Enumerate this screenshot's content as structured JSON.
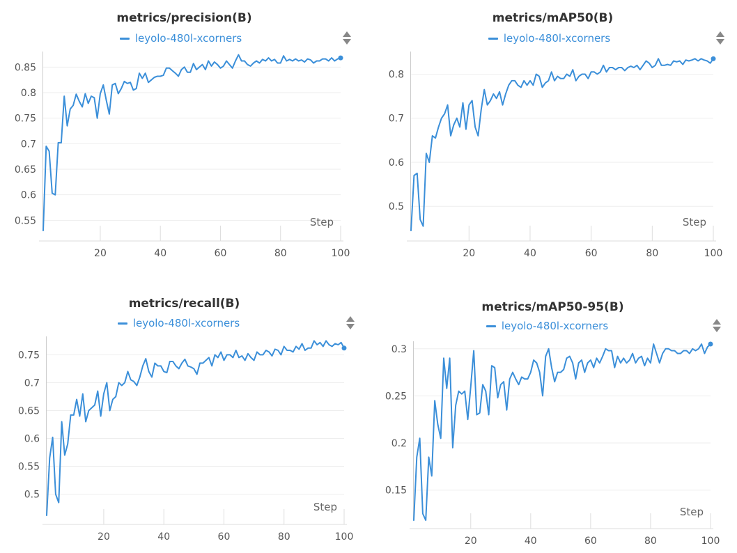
{
  "series_color": "#3b8fd9",
  "menu_icon": "sort-triangles-icon",
  "chart_data": [
    {
      "type": "line",
      "title": "metrics/precision(B)",
      "legend": "leyolo-480l-xcorners",
      "xlabel": "Step",
      "xlim": [
        1,
        100
      ],
      "ylim": [
        0.53,
        0.875
      ],
      "xticks": [
        20,
        40,
        60,
        80,
        100
      ],
      "yticks": [
        0.55,
        0.6,
        0.65,
        0.7,
        0.75,
        0.8,
        0.85
      ],
      "yticklabels": [
        "0.55",
        "0.6",
        "0.65",
        "0.7",
        "0.75",
        "0.8",
        "0.85"
      ],
      "xticklabels": [
        "20",
        "40",
        "60",
        "80",
        "100"
      ],
      "series": [
        {
          "name": "leyolo-480l-xcorners",
          "x": [
            1,
            2,
            3,
            4,
            5,
            6,
            7,
            8,
            9,
            10,
            11,
            12,
            13,
            14,
            15,
            16,
            17,
            18,
            19,
            20,
            21,
            22,
            23,
            24,
            25,
            26,
            27,
            28,
            29,
            30,
            31,
            32,
            33,
            34,
            35,
            36,
            37,
            38,
            39,
            40,
            41,
            42,
            43,
            44,
            45,
            46,
            47,
            48,
            49,
            50,
            51,
            52,
            53,
            54,
            55,
            56,
            57,
            58,
            59,
            60,
            61,
            62,
            63,
            64,
            65,
            66,
            67,
            68,
            69,
            70,
            71,
            72,
            73,
            74,
            75,
            76,
            77,
            78,
            79,
            80,
            81,
            82,
            83,
            84,
            85,
            86,
            87,
            88,
            89,
            90,
            91,
            92,
            93,
            94,
            95,
            96,
            97,
            98,
            99,
            100
          ],
          "y": [
            0.53,
            0.695,
            0.685,
            0.603,
            0.6,
            0.702,
            0.702,
            0.793,
            0.735,
            0.768,
            0.775,
            0.797,
            0.783,
            0.772,
            0.798,
            0.779,
            0.793,
            0.79,
            0.75,
            0.798,
            0.815,
            0.785,
            0.758,
            0.815,
            0.818,
            0.798,
            0.808,
            0.822,
            0.818,
            0.82,
            0.805,
            0.808,
            0.838,
            0.828,
            0.838,
            0.82,
            0.825,
            0.83,
            0.832,
            0.832,
            0.834,
            0.848,
            0.848,
            0.843,
            0.838,
            0.832,
            0.845,
            0.85,
            0.84,
            0.84,
            0.857,
            0.845,
            0.85,
            0.855,
            0.845,
            0.862,
            0.852,
            0.86,
            0.855,
            0.848,
            0.852,
            0.862,
            0.855,
            0.848,
            0.862,
            0.874,
            0.862,
            0.862,
            0.855,
            0.852,
            0.858,
            0.862,
            0.858,
            0.865,
            0.862,
            0.868,
            0.862,
            0.865,
            0.858,
            0.858,
            0.872,
            0.862,
            0.865,
            0.862,
            0.866,
            0.862,
            0.864,
            0.86,
            0.866,
            0.864,
            0.858,
            0.862,
            0.862,
            0.866,
            0.866,
            0.862,
            0.868,
            0.862,
            0.866,
            0.868
          ]
        }
      ]
    },
    {
      "type": "line",
      "title": "metrics/mAP50(B)",
      "legend": "leyolo-480l-xcorners",
      "xlabel": "Step",
      "xlim": [
        1,
        100
      ],
      "ylim": [
        0.445,
        0.845
      ],
      "xticks": [
        20,
        40,
        60,
        80,
        100
      ],
      "yticks": [
        0.5,
        0.6,
        0.7,
        0.8
      ],
      "yticklabels": [
        "0.5",
        "0.6",
        "0.7",
        "0.8"
      ],
      "xticklabels": [
        "20",
        "40",
        "60",
        "80",
        "100"
      ],
      "series": [
        {
          "name": "leyolo-480l-xcorners",
          "x": [
            1,
            2,
            3,
            4,
            5,
            6,
            7,
            8,
            9,
            10,
            11,
            12,
            13,
            14,
            15,
            16,
            17,
            18,
            19,
            20,
            21,
            22,
            23,
            24,
            25,
            26,
            27,
            28,
            29,
            30,
            31,
            32,
            33,
            34,
            35,
            36,
            37,
            38,
            39,
            40,
            41,
            42,
            43,
            44,
            45,
            46,
            47,
            48,
            49,
            50,
            51,
            52,
            53,
            54,
            55,
            56,
            57,
            58,
            59,
            60,
            61,
            62,
            63,
            64,
            65,
            66,
            67,
            68,
            69,
            70,
            71,
            72,
            73,
            74,
            75,
            76,
            77,
            78,
            79,
            80,
            81,
            82,
            83,
            84,
            85,
            86,
            87,
            88,
            89,
            90,
            91,
            92,
            93,
            94,
            95,
            96,
            97,
            98,
            99,
            100
          ],
          "y": [
            0.445,
            0.57,
            0.575,
            0.47,
            0.455,
            0.62,
            0.6,
            0.66,
            0.655,
            0.68,
            0.7,
            0.71,
            0.73,
            0.66,
            0.685,
            0.7,
            0.68,
            0.735,
            0.675,
            0.73,
            0.74,
            0.68,
            0.66,
            0.72,
            0.765,
            0.73,
            0.74,
            0.755,
            0.745,
            0.76,
            0.73,
            0.755,
            0.775,
            0.785,
            0.785,
            0.775,
            0.77,
            0.785,
            0.775,
            0.785,
            0.775,
            0.8,
            0.795,
            0.77,
            0.78,
            0.785,
            0.805,
            0.785,
            0.795,
            0.79,
            0.79,
            0.8,
            0.795,
            0.81,
            0.785,
            0.795,
            0.8,
            0.8,
            0.79,
            0.805,
            0.805,
            0.8,
            0.805,
            0.82,
            0.805,
            0.815,
            0.815,
            0.81,
            0.815,
            0.815,
            0.808,
            0.815,
            0.818,
            0.815,
            0.82,
            0.81,
            0.82,
            0.83,
            0.825,
            0.815,
            0.82,
            0.835,
            0.82,
            0.82,
            0.822,
            0.82,
            0.83,
            0.828,
            0.83,
            0.822,
            0.832,
            0.83,
            0.832,
            0.835,
            0.83,
            0.835,
            0.832,
            0.83,
            0.825,
            0.835
          ]
        }
      ]
    },
    {
      "type": "line",
      "title": "metrics/recall(B)",
      "legend": "leyolo-480l-xcorners",
      "xlabel": "Step",
      "xlim": [
        1,
        100
      ],
      "ylim": [
        0.462,
        0.778
      ],
      "xticks": [
        20,
        40,
        60,
        80,
        100
      ],
      "yticks": [
        0.5,
        0.55,
        0.6,
        0.65,
        0.7,
        0.75
      ],
      "yticklabels": [
        "0.5",
        "0.55",
        "0.6",
        "0.65",
        "0.7",
        "0.75"
      ],
      "xticklabels": [
        "20",
        "40",
        "60",
        "80",
        "100"
      ],
      "series": [
        {
          "name": "leyolo-480l-xcorners",
          "x": [
            1,
            2,
            3,
            4,
            5,
            6,
            7,
            8,
            9,
            10,
            11,
            12,
            13,
            14,
            15,
            16,
            17,
            18,
            19,
            20,
            21,
            22,
            23,
            24,
            25,
            26,
            27,
            28,
            29,
            30,
            31,
            32,
            33,
            34,
            35,
            36,
            37,
            38,
            39,
            40,
            41,
            42,
            43,
            44,
            45,
            46,
            47,
            48,
            49,
            50,
            51,
            52,
            53,
            54,
            55,
            56,
            57,
            58,
            59,
            60,
            61,
            62,
            63,
            64,
            65,
            66,
            67,
            68,
            69,
            70,
            71,
            72,
            73,
            74,
            75,
            76,
            77,
            78,
            79,
            80,
            81,
            82,
            83,
            84,
            85,
            86,
            87,
            88,
            89,
            90,
            91,
            92,
            93,
            94,
            95,
            96,
            97,
            98,
            99,
            100
          ],
          "y": [
            0.462,
            0.565,
            0.602,
            0.5,
            0.485,
            0.63,
            0.57,
            0.59,
            0.642,
            0.642,
            0.67,
            0.64,
            0.68,
            0.63,
            0.65,
            0.655,
            0.66,
            0.685,
            0.64,
            0.68,
            0.7,
            0.65,
            0.67,
            0.675,
            0.7,
            0.695,
            0.7,
            0.72,
            0.705,
            0.702,
            0.695,
            0.71,
            0.73,
            0.743,
            0.72,
            0.71,
            0.735,
            0.73,
            0.73,
            0.72,
            0.718,
            0.738,
            0.738,
            0.73,
            0.725,
            0.735,
            0.742,
            0.73,
            0.728,
            0.725,
            0.715,
            0.735,
            0.735,
            0.74,
            0.745,
            0.73,
            0.75,
            0.745,
            0.755,
            0.74,
            0.75,
            0.75,
            0.745,
            0.758,
            0.745,
            0.748,
            0.74,
            0.752,
            0.745,
            0.74,
            0.755,
            0.75,
            0.75,
            0.758,
            0.755,
            0.748,
            0.76,
            0.758,
            0.75,
            0.765,
            0.758,
            0.758,
            0.755,
            0.765,
            0.76,
            0.77,
            0.758,
            0.762,
            0.762,
            0.775,
            0.768,
            0.772,
            0.765,
            0.775,
            0.768,
            0.765,
            0.77,
            0.768,
            0.772,
            0.762
          ]
        }
      ]
    },
    {
      "type": "line",
      "title": "metrics/mAP50-95(B)",
      "legend": "leyolo-480l-xcorners",
      "xlabel": "Step",
      "xlim": [
        1,
        100
      ],
      "ylim": [
        0.118,
        0.305
      ],
      "xticks": [
        20,
        40,
        60,
        80,
        100
      ],
      "yticks": [
        0.15,
        0.2,
        0.25,
        0.3
      ],
      "yticklabels": [
        "0.15",
        "0.2",
        "0.25",
        "0.3"
      ],
      "xticklabels": [
        "20",
        "40",
        "60",
        "80",
        "100"
      ],
      "series": [
        {
          "name": "leyolo-480l-xcorners",
          "x": [
            1,
            2,
            3,
            4,
            5,
            6,
            7,
            8,
            9,
            10,
            11,
            12,
            13,
            14,
            15,
            16,
            17,
            18,
            19,
            20,
            21,
            22,
            23,
            24,
            25,
            26,
            27,
            28,
            29,
            30,
            31,
            32,
            33,
            34,
            35,
            36,
            37,
            38,
            39,
            40,
            41,
            42,
            43,
            44,
            45,
            46,
            47,
            48,
            49,
            50,
            51,
            52,
            53,
            54,
            55,
            56,
            57,
            58,
            59,
            60,
            61,
            62,
            63,
            64,
            65,
            66,
            67,
            68,
            69,
            70,
            71,
            72,
            73,
            74,
            75,
            76,
            77,
            78,
            79,
            80,
            81,
            82,
            83,
            84,
            85,
            86,
            87,
            88,
            89,
            90,
            91,
            92,
            93,
            94,
            95,
            96,
            97,
            98,
            99,
            100
          ],
          "y": [
            0.118,
            0.185,
            0.205,
            0.125,
            0.118,
            0.185,
            0.165,
            0.245,
            0.22,
            0.205,
            0.29,
            0.258,
            0.29,
            0.195,
            0.24,
            0.255,
            0.252,
            0.255,
            0.225,
            0.26,
            0.298,
            0.23,
            0.232,
            0.262,
            0.255,
            0.23,
            0.282,
            0.28,
            0.248,
            0.262,
            0.265,
            0.235,
            0.268,
            0.275,
            0.268,
            0.262,
            0.27,
            0.268,
            0.268,
            0.275,
            0.288,
            0.285,
            0.275,
            0.25,
            0.292,
            0.3,
            0.28,
            0.265,
            0.275,
            0.275,
            0.278,
            0.29,
            0.292,
            0.285,
            0.268,
            0.285,
            0.288,
            0.275,
            0.285,
            0.288,
            0.28,
            0.29,
            0.285,
            0.292,
            0.3,
            0.298,
            0.298,
            0.28,
            0.292,
            0.285,
            0.29,
            0.285,
            0.288,
            0.295,
            0.285,
            0.29,
            0.292,
            0.282,
            0.29,
            0.285,
            0.305,
            0.295,
            0.285,
            0.295,
            0.3,
            0.3,
            0.298,
            0.298,
            0.295,
            0.295,
            0.298,
            0.298,
            0.295,
            0.3,
            0.298,
            0.3,
            0.305,
            0.295,
            0.302,
            0.305
          ]
        }
      ]
    }
  ]
}
